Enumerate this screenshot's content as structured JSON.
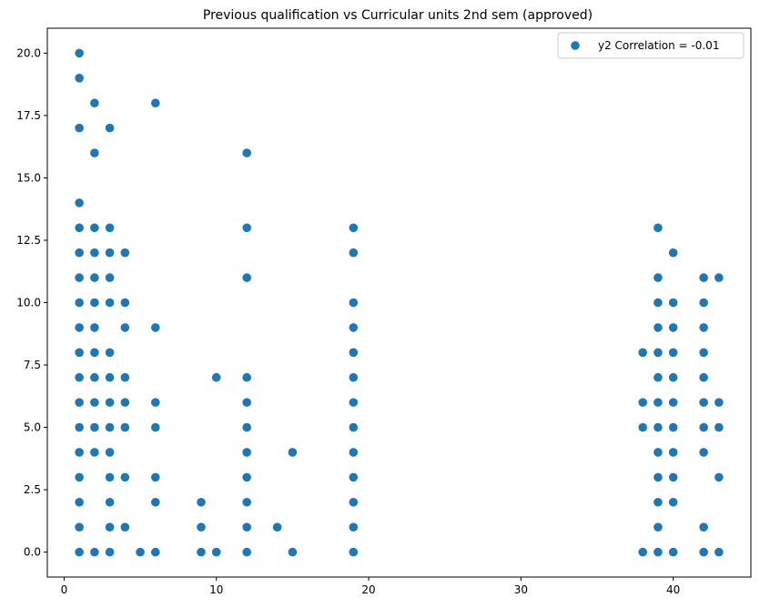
{
  "chart_data": {
    "type": "scatter",
    "title": "Previous qualification vs Curricular units 2nd sem (approved)",
    "xlabel": "",
    "ylabel": "",
    "xlim": [
      -1.1,
      45.1
    ],
    "ylim": [
      -1.0,
      21.0
    ],
    "x_ticks": [
      0,
      10,
      20,
      30,
      40
    ],
    "y_ticks": [
      0.0,
      2.5,
      5.0,
      7.5,
      10.0,
      12.5,
      15.0,
      17.5,
      20.0
    ],
    "x_tick_labels": [
      "0",
      "10",
      "20",
      "30",
      "40"
    ],
    "y_tick_labels": [
      "0.0",
      "2.5",
      "5.0",
      "7.5",
      "10.0",
      "12.5",
      "15.0",
      "17.5",
      "20.0"
    ],
    "grid": false,
    "legend_position": "top-right",
    "series": [
      {
        "name": "y2 Correlation = -0.01",
        "color": "#1f77b4",
        "points": [
          [
            1,
            0
          ],
          [
            1,
            1
          ],
          [
            1,
            2
          ],
          [
            1,
            3
          ],
          [
            1,
            4
          ],
          [
            1,
            5
          ],
          [
            1,
            6
          ],
          [
            1,
            7
          ],
          [
            1,
            8
          ],
          [
            1,
            9
          ],
          [
            1,
            10
          ],
          [
            1,
            11
          ],
          [
            1,
            12
          ],
          [
            1,
            13
          ],
          [
            1,
            14
          ],
          [
            1,
            17
          ],
          [
            1,
            19
          ],
          [
            1,
            20
          ],
          [
            2,
            0
          ],
          [
            2,
            4
          ],
          [
            2,
            5
          ],
          [
            2,
            6
          ],
          [
            2,
            7
          ],
          [
            2,
            8
          ],
          [
            2,
            9
          ],
          [
            2,
            10
          ],
          [
            2,
            11
          ],
          [
            2,
            12
          ],
          [
            2,
            13
          ],
          [
            2,
            16
          ],
          [
            2,
            18
          ],
          [
            3,
            0
          ],
          [
            3,
            1
          ],
          [
            3,
            2
          ],
          [
            3,
            3
          ],
          [
            3,
            4
          ],
          [
            3,
            5
          ],
          [
            3,
            6
          ],
          [
            3,
            7
          ],
          [
            3,
            8
          ],
          [
            3,
            10
          ],
          [
            3,
            11
          ],
          [
            3,
            12
          ],
          [
            3,
            13
          ],
          [
            3,
            17
          ],
          [
            4,
            1
          ],
          [
            4,
            3
          ],
          [
            4,
            5
          ],
          [
            4,
            6
          ],
          [
            4,
            7
          ],
          [
            4,
            9
          ],
          [
            4,
            10
          ],
          [
            4,
            12
          ],
          [
            5,
            0
          ],
          [
            6,
            0
          ],
          [
            6,
            2
          ],
          [
            6,
            3
          ],
          [
            6,
            5
          ],
          [
            6,
            6
          ],
          [
            6,
            9
          ],
          [
            6,
            18
          ],
          [
            9,
            0
          ],
          [
            9,
            1
          ],
          [
            9,
            2
          ],
          [
            10,
            0
          ],
          [
            10,
            7
          ],
          [
            12,
            0
          ],
          [
            12,
            1
          ],
          [
            12,
            2
          ],
          [
            12,
            3
          ],
          [
            12,
            4
          ],
          [
            12,
            5
          ],
          [
            12,
            6
          ],
          [
            12,
            7
          ],
          [
            12,
            11
          ],
          [
            12,
            13
          ],
          [
            12,
            16
          ],
          [
            14,
            1
          ],
          [
            15,
            0
          ],
          [
            15,
            4
          ],
          [
            19,
            0
          ],
          [
            19,
            1
          ],
          [
            19,
            2
          ],
          [
            19,
            3
          ],
          [
            19,
            4
          ],
          [
            19,
            5
          ],
          [
            19,
            6
          ],
          [
            19,
            7
          ],
          [
            19,
            8
          ],
          [
            19,
            9
          ],
          [
            19,
            10
          ],
          [
            19,
            12
          ],
          [
            19,
            13
          ],
          [
            38,
            0
          ],
          [
            38,
            5
          ],
          [
            38,
            6
          ],
          [
            38,
            8
          ],
          [
            39,
            0
          ],
          [
            39,
            1
          ],
          [
            39,
            2
          ],
          [
            39,
            3
          ],
          [
            39,
            4
          ],
          [
            39,
            5
          ],
          [
            39,
            6
          ],
          [
            39,
            7
          ],
          [
            39,
            8
          ],
          [
            39,
            9
          ],
          [
            39,
            10
          ],
          [
            39,
            11
          ],
          [
            39,
            13
          ],
          [
            40,
            0
          ],
          [
            40,
            2
          ],
          [
            40,
            3
          ],
          [
            40,
            4
          ],
          [
            40,
            5
          ],
          [
            40,
            6
          ],
          [
            40,
            7
          ],
          [
            40,
            8
          ],
          [
            40,
            9
          ],
          [
            40,
            10
          ],
          [
            40,
            12
          ],
          [
            42,
            0
          ],
          [
            42,
            1
          ],
          [
            42,
            4
          ],
          [
            42,
            5
          ],
          [
            42,
            6
          ],
          [
            42,
            7
          ],
          [
            42,
            8
          ],
          [
            42,
            9
          ],
          [
            42,
            10
          ],
          [
            42,
            11
          ],
          [
            43,
            0
          ],
          [
            43,
            3
          ],
          [
            43,
            5
          ],
          [
            43,
            6
          ],
          [
            43,
            11
          ]
        ]
      }
    ]
  }
}
